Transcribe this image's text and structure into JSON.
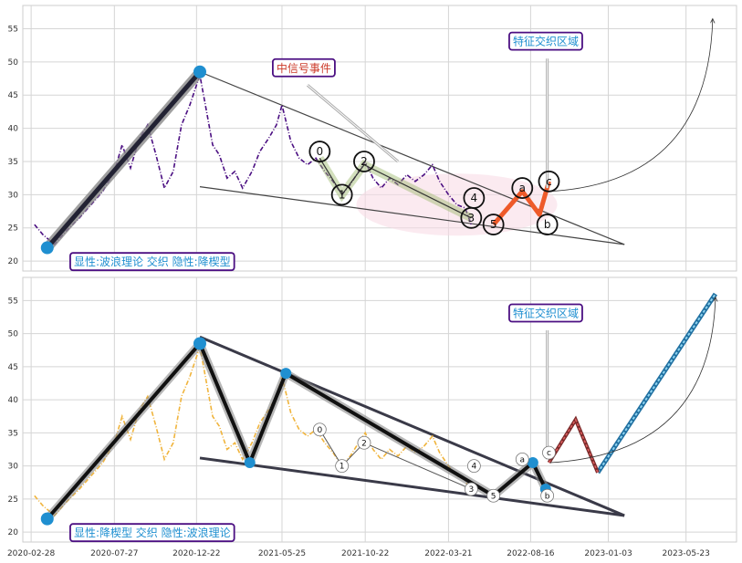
{
  "chart_data": [
    {
      "type": "line",
      "ylim": [
        18.5,
        58.5
      ],
      "yticks": [
        20,
        25,
        30,
        35,
        40,
        45,
        50,
        55
      ],
      "xlim": [
        "2020-02-13",
        "2023-08-22"
      ],
      "series": [
        {
          "line_color": "#4b0f82",
          "style": "dash-dot",
          "points": [
            [
              "2020-03-05",
              25.5
            ],
            [
              "2020-03-20",
              24.0
            ],
            [
              "2020-04-10",
              22.5
            ],
            [
              "2020-05-01",
              24.5
            ],
            [
              "2020-05-25",
              26.5
            ],
            [
              "2020-06-15",
              28.5
            ],
            [
              "2020-07-06",
              30.5
            ],
            [
              "2020-07-27",
              33.5
            ],
            [
              "2020-08-10",
              37.5
            ],
            [
              "2020-08-25",
              34.0
            ],
            [
              "2020-09-10",
              38.5
            ],
            [
              "2020-09-25",
              40.5
            ],
            [
              "2020-10-10",
              36.0
            ],
            [
              "2020-10-25",
              31.0
            ],
            [
              "2020-11-10",
              33.5
            ],
            [
              "2020-11-25",
              40.5
            ],
            [
              "2020-12-10",
              43.5
            ],
            [
              "2020-12-28",
              48.0
            ],
            [
              "2021-01-08",
              43.0
            ],
            [
              "2021-01-20",
              37.5
            ],
            [
              "2021-02-01",
              36.0
            ],
            [
              "2021-02-15",
              32.5
            ],
            [
              "2021-03-01",
              33.5
            ],
            [
              "2021-03-15",
              31.0
            ],
            [
              "2021-04-01",
              33.5
            ],
            [
              "2021-04-15",
              36.5
            ],
            [
              "2021-05-01",
              38.5
            ],
            [
              "2021-05-15",
              40.5
            ],
            [
              "2021-05-25",
              43.5
            ],
            [
              "2021-06-10",
              38.0
            ],
            [
              "2021-06-25",
              35.5
            ],
            [
              "2021-07-10",
              34.5
            ],
            [
              "2021-07-25",
              35.5
            ],
            [
              "2021-08-10",
              33.5
            ],
            [
              "2021-08-25",
              32.0
            ],
            [
              "2021-09-10",
              30.0
            ],
            [
              "2021-09-25",
              31.5
            ],
            [
              "2021-10-10",
              33.5
            ],
            [
              "2021-10-22",
              35.0
            ],
            [
              "2021-11-05",
              32.5
            ],
            [
              "2021-11-20",
              31.0
            ],
            [
              "2021-12-05",
              32.5
            ],
            [
              "2021-12-20",
              31.5
            ],
            [
              "2022-01-05",
              33.0
            ],
            [
              "2022-01-20",
              32.0
            ],
            [
              "2022-02-05",
              33.0
            ],
            [
              "2022-02-20",
              34.5
            ],
            [
              "2022-03-05",
              32.0
            ],
            [
              "2022-03-21",
              30.0
            ],
            [
              "2022-04-05",
              28.5
            ],
            [
              "2022-04-20",
              28.0
            ],
            [
              "2022-05-01",
              25.5
            ]
          ]
        },
        {
          "line_color": "#4b0f82",
          "style": "trend",
          "points": [
            [
              "2020-03-28",
              22.0
            ],
            [
              "2020-12-28",
              48.5
            ]
          ]
        }
      ],
      "trendlines": [
        {
          "from": [
            "2020-12-28",
            48.5
          ],
          "to": [
            "2023-02-01",
            22.5
          ]
        },
        {
          "from": [
            "2020-12-28",
            31.2
          ],
          "to": [
            "2023-02-01",
            22.5
          ]
        }
      ],
      "wave_markers": [
        {
          "label": "0",
          "x": "2021-08-01",
          "y": 36.5
        },
        {
          "label": "1",
          "x": "2021-09-10",
          "y": 30.0
        },
        {
          "label": "2",
          "x": "2021-10-20",
          "y": 35.0
        },
        {
          "label": "3",
          "x": "2022-05-01",
          "y": 26.5
        },
        {
          "label": "4",
          "x": "2022-05-06",
          "y": 29.5
        },
        {
          "label": "5",
          "x": "2022-06-10",
          "y": 25.5
        },
        {
          "label": "a",
          "x": "2022-08-01",
          "y": 31.0
        },
        {
          "label": "b",
          "x": "2022-09-15",
          "y": 25.5
        },
        {
          "label": "c",
          "x": "2022-09-18",
          "y": 32.0
        }
      ],
      "annotations": [
        {
          "text": "中信号事件",
          "x": "2021-05-15",
          "y": 48.5,
          "color": "#cc3a2a"
        },
        {
          "text": "特征交织区域",
          "x": "2022-07-15",
          "y": 52.5,
          "color": "#1f8fd0"
        },
        {
          "text": "显性:波浪理论 交织 隐性:降楔型",
          "x": "2020-05-15",
          "y": 19.3,
          "color": "#1f8fd0"
        }
      ]
    },
    {
      "type": "line",
      "ylim": [
        18.5,
        58.5
      ],
      "yticks": [
        20,
        25,
        30,
        35,
        40,
        45,
        50,
        55
      ],
      "xlim": [
        "2020-02-13",
        "2023-08-22"
      ],
      "xticks": [
        "2020-02-28",
        "2020-07-27",
        "2020-12-22",
        "2021-05-25",
        "2021-10-22",
        "2022-03-21",
        "2022-08-16",
        "2023-01-03",
        "2023-05-23"
      ],
      "series": [
        {
          "line_color": "#f0b43c",
          "style": "dash-dot",
          "points": [
            [
              "2020-03-05",
              25.5
            ],
            [
              "2020-03-20",
              24.0
            ],
            [
              "2020-04-10",
              22.5
            ],
            [
              "2020-05-01",
              24.5
            ],
            [
              "2020-05-25",
              26.5
            ],
            [
              "2020-06-15",
              28.5
            ],
            [
              "2020-07-06",
              30.5
            ],
            [
              "2020-07-27",
              33.5
            ],
            [
              "2020-08-10",
              37.5
            ],
            [
              "2020-08-25",
              34.0
            ],
            [
              "2020-09-10",
              38.5
            ],
            [
              "2020-09-25",
              40.5
            ],
            [
              "2020-10-10",
              36.0
            ],
            [
              "2020-10-25",
              31.0
            ],
            [
              "2020-11-10",
              33.5
            ],
            [
              "2020-11-25",
              40.5
            ],
            [
              "2020-12-10",
              43.5
            ],
            [
              "2020-12-28",
              48.0
            ],
            [
              "2021-01-08",
              43.0
            ],
            [
              "2021-01-20",
              37.5
            ],
            [
              "2021-02-01",
              36.0
            ],
            [
              "2021-02-15",
              32.5
            ],
            [
              "2021-03-01",
              33.5
            ],
            [
              "2021-03-15",
              31.0
            ],
            [
              "2021-04-01",
              33.5
            ],
            [
              "2021-04-15",
              36.5
            ],
            [
              "2021-05-01",
              38.5
            ],
            [
              "2021-05-15",
              40.5
            ],
            [
              "2021-05-25",
              43.5
            ],
            [
              "2021-06-10",
              38.0
            ],
            [
              "2021-06-25",
              35.5
            ],
            [
              "2021-07-10",
              34.5
            ],
            [
              "2021-07-25",
              35.5
            ],
            [
              "2021-08-10",
              33.5
            ],
            [
              "2021-08-25",
              32.0
            ],
            [
              "2021-09-10",
              30.0
            ],
            [
              "2021-09-25",
              31.5
            ],
            [
              "2021-10-10",
              33.5
            ],
            [
              "2021-10-22",
              35.0
            ],
            [
              "2021-11-05",
              32.5
            ],
            [
              "2021-11-20",
              31.0
            ],
            [
              "2021-12-05",
              32.5
            ],
            [
              "2021-12-20",
              31.5
            ],
            [
              "2022-01-05",
              33.0
            ],
            [
              "2022-01-20",
              32.0
            ],
            [
              "2022-02-05",
              33.0
            ],
            [
              "2022-02-20",
              34.5
            ],
            [
              "2022-03-05",
              32.0
            ],
            [
              "2022-03-21",
              30.0
            ],
            [
              "2022-04-05",
              28.5
            ],
            [
              "2022-04-20",
              28.0
            ],
            [
              "2022-05-01",
              25.5
            ]
          ]
        },
        {
          "line_color": "#111111",
          "style": "zigzag",
          "points": [
            [
              "2020-03-28",
              22.0
            ],
            [
              "2020-12-28",
              48.5
            ],
            [
              "2021-03-28",
              30.5
            ],
            [
              "2021-06-01",
              44.0
            ],
            [
              "2022-06-10",
              25.5
            ],
            [
              "2022-08-20",
              30.5
            ],
            [
              "2022-09-12",
              26.5
            ]
          ]
        },
        {
          "line_color": "#3fa7d6",
          "style": "projection",
          "points": [
            [
              "2022-12-15",
              29.0
            ],
            [
              "2023-07-15",
              56.0
            ]
          ]
        }
      ],
      "trendlines": [
        {
          "from": [
            "2020-12-28",
            49.5
          ],
          "to": [
            "2023-02-01",
            22.5
          ]
        },
        {
          "from": [
            "2020-12-28",
            31.2
          ],
          "to": [
            "2023-02-01",
            22.5
          ]
        }
      ],
      "wave_markers": [
        {
          "label": "0",
          "x": "2021-08-01",
          "y": 35.5
        },
        {
          "label": "1",
          "x": "2021-09-10",
          "y": 30.0
        },
        {
          "label": "2",
          "x": "2021-10-20",
          "y": 33.5
        },
        {
          "label": "3",
          "x": "2022-05-01",
          "y": 26.5
        },
        {
          "label": "4",
          "x": "2022-05-06",
          "y": 30.0
        },
        {
          "label": "5",
          "x": "2022-06-10",
          "y": 25.5
        },
        {
          "label": "a",
          "x": "2022-08-01",
          "y": 31.0
        },
        {
          "label": "b",
          "x": "2022-09-15",
          "y": 25.5
        },
        {
          "label": "c",
          "x": "2022-09-18",
          "y": 32.0
        }
      ],
      "annotations": [
        {
          "text": "特征交织区域",
          "x": "2022-07-15",
          "y": 52.5,
          "color": "#1f8fd0"
        },
        {
          "text": "显性:降楔型 交织 隐性:波浪理论",
          "x": "2020-05-15",
          "y": 19.3,
          "color": "#1f8fd0"
        }
      ]
    }
  ]
}
